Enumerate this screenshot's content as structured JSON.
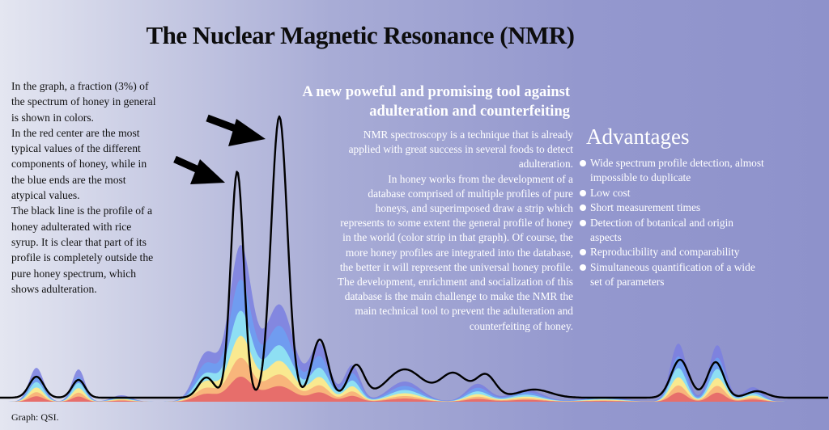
{
  "title": "The Nuclear Magnetic Resonance (NMR)",
  "left_paragraphs": [
    "In the graph, a fraction (3%) of the spectrum of honey in general is shown in colors.",
    "In the red center are the most typical values of the different components of honey, while in the blue ends are the most atypical values.",
    "The black line is the profile of a honey adulterated with rice syrup. It is clear that part of its profile is completely outside the pure honey spectrum, which shows adulteration."
  ],
  "subtitle_lines": [
    "A new poweful and promising tool against",
    "adulteration and counterfeiting"
  ],
  "body_paragraphs": [
    "NMR spectroscopy is a technique that is already applied with great success in several foods to detect adulteration.",
    "In honey works from the development of a database comprised of multiple profiles of pure honeys, and superimposed draw a strip which represents to some extent the general profile of honey in the world (color strip in that graph). Of course, the more honey profiles are integrated into the database, the better it will represent the universal honey profile. The development, enrichment and socialization of this database is the main challenge to make the NMR the main technical tool to prevent the adulteration and counterfeiting of honey."
  ],
  "advantages": {
    "title": "Advantages",
    "items": [
      "Wide spectrum profile detection, almost impossible to duplicate",
      "Low cost",
      "Short measurement times",
      "Detection of botanical and origin aspects",
      "Reproducibility and comparability",
      "Simultaneous quantification of a wide set of parameters"
    ]
  },
  "credit": "Graph: QSI.",
  "colors": {
    "band_outer": "#7a7fe0",
    "band_blue": "#6f9df0",
    "band_cyan": "#8fe3f2",
    "band_yellow": "#ffe98a",
    "band_orange": "#f8b27a",
    "band_red": "#e66a6a",
    "line": "#000000",
    "arrow": "#000000"
  },
  "icons": [
    "arrow-icon",
    "arrow-icon",
    "bullet-icon"
  ]
}
